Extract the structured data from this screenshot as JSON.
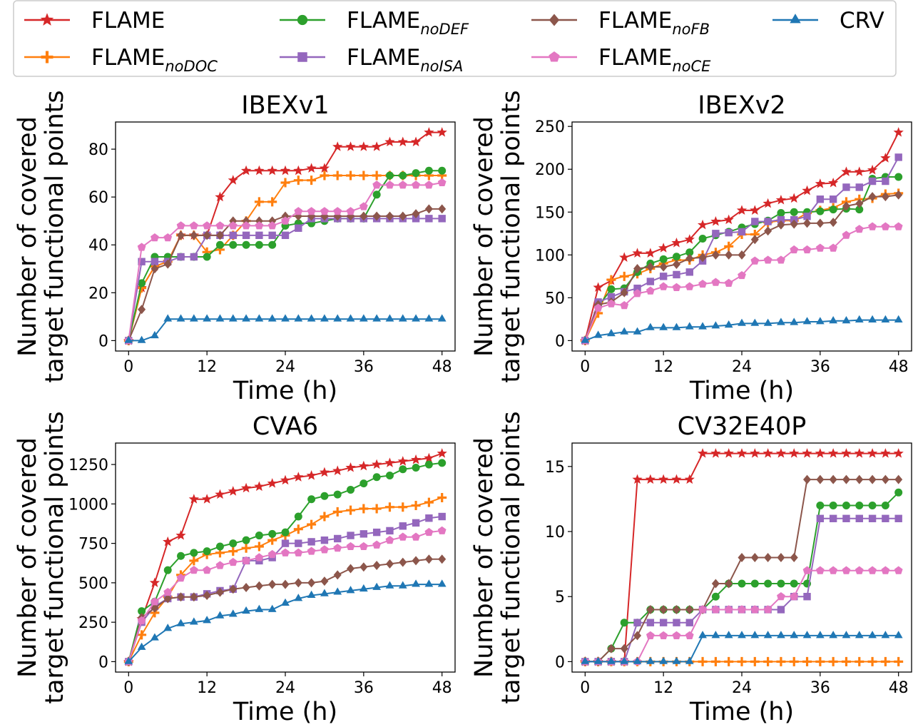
{
  "colors": {
    "FLAME": "#d62728",
    "FLAME_noDOC": "#ff7f0e",
    "FLAME_noDEF": "#2ca02c",
    "FLAME_noISA": "#9467bd",
    "FLAME_noFB": "#8c564b",
    "FLAME_noCE": "#e377c2",
    "CRV": "#1f77b4"
  },
  "legend": [
    {
      "key": "FLAME",
      "base": "FLAME",
      "sub": "",
      "marker": "star"
    },
    {
      "key": "FLAME_noDOC",
      "base": "FLAME",
      "sub": "noDOC",
      "marker": "plus"
    },
    {
      "key": "FLAME_noDEF",
      "base": "FLAME",
      "sub": "noDEF",
      "marker": "circle"
    },
    {
      "key": "FLAME_noISA",
      "base": "FLAME",
      "sub": "noISA",
      "marker": "square"
    },
    {
      "key": "FLAME_noFB",
      "base": "FLAME",
      "sub": "noFB",
      "marker": "diamond"
    },
    {
      "key": "FLAME_noCE",
      "base": "FLAME",
      "sub": "noCE",
      "marker": "pentagon"
    },
    {
      "key": "CRV",
      "base": "CRV",
      "sub": "",
      "marker": "triangle"
    }
  ],
  "chart_data": [
    {
      "type": "line",
      "title": "IBEXv1",
      "xlabel": "Time (h)",
      "ylabel": "Number of covered target functional points",
      "xlim": [
        -2,
        50
      ],
      "ylim": [
        -4.35,
        91.35
      ],
      "xticks": [
        0,
        12,
        24,
        36,
        48
      ],
      "yticks": [
        0,
        20,
        40,
        60,
        80
      ],
      "x": [
        0,
        2,
        4,
        6,
        8,
        10,
        12,
        14,
        16,
        18,
        20,
        22,
        24,
        26,
        28,
        30,
        32,
        34,
        36,
        38,
        40,
        42,
        44,
        46,
        48
      ],
      "series": [
        {
          "name": "FLAME",
          "values": [
            0,
            22,
            31,
            33,
            44,
            44,
            44,
            60,
            67,
            71,
            71,
            71,
            71,
            71,
            72,
            72,
            81,
            81,
            81,
            81,
            83,
            83,
            83,
            87,
            87
          ]
        },
        {
          "name": "FLAME_noDOC",
          "values": [
            0,
            22,
            31,
            33,
            44,
            44,
            37,
            38,
            44,
            50,
            58,
            58,
            66,
            67,
            67,
            69,
            69,
            69,
            69,
            69,
            69,
            69,
            69,
            69,
            69
          ]
        },
        {
          "name": "FLAME_noDEF",
          "values": [
            0,
            24,
            35,
            35,
            35,
            35,
            35,
            40,
            40,
            40,
            40,
            40,
            48,
            49,
            49,
            50,
            51,
            51,
            51,
            61,
            69,
            69,
            70,
            71,
            71
          ]
        },
        {
          "name": "FLAME_noISA",
          "values": [
            0,
            33,
            33,
            33,
            35,
            35,
            44,
            44,
            44,
            44,
            44,
            44,
            44,
            47,
            51,
            51,
            51,
            51,
            51,
            51,
            51,
            51,
            51,
            51,
            51
          ]
        },
        {
          "name": "FLAME_noFB",
          "values": [
            0,
            13,
            30,
            32,
            44,
            44,
            44,
            44,
            50,
            50,
            50,
            50,
            52,
            52,
            52,
            52,
            52,
            52,
            52,
            52,
            52,
            52,
            53,
            55,
            55
          ]
        },
        {
          "name": "FLAME_noCE",
          "values": [
            0,
            39,
            43,
            43,
            48,
            48,
            48,
            48,
            48,
            48,
            48,
            48,
            50,
            54,
            54,
            54,
            54,
            54,
            56,
            65,
            65,
            65,
            65,
            65,
            66
          ]
        },
        {
          "name": "CRV",
          "values": [
            0,
            0,
            2,
            9,
            9,
            9,
            9,
            9,
            9,
            9,
            9,
            9,
            9,
            9,
            9,
            9,
            9,
            9,
            9,
            9,
            9,
            9,
            9,
            9,
            9
          ]
        }
      ]
    },
    {
      "type": "line",
      "title": "IBEXv2",
      "xlabel": "Time (h)",
      "ylabel": "Number of covered target functional points",
      "xlim": [
        -2,
        50
      ],
      "ylim": [
        -12.15,
        255.15
      ],
      "xticks": [
        0,
        12,
        24,
        36,
        48
      ],
      "yticks": [
        0,
        50,
        100,
        150,
        200,
        250
      ],
      "x": [
        0,
        2,
        4,
        6,
        8,
        10,
        12,
        14,
        16,
        18,
        20,
        22,
        24,
        26,
        28,
        30,
        32,
        34,
        36,
        38,
        40,
        42,
        44,
        46,
        48
      ],
      "series": [
        {
          "name": "FLAME",
          "values": [
            0,
            62,
            70,
            97,
            102,
            102,
            108,
            114,
            118,
            135,
            139,
            141,
            152,
            152,
            160,
            164,
            166,
            175,
            183,
            184,
            197,
            197,
            199,
            213,
            243
          ]
        },
        {
          "name": "FLAME_noDOC",
          "values": [
            0,
            32,
            71,
            75,
            78,
            84,
            90,
            94,
            94,
            100,
            103,
            110,
            124,
            124,
            138,
            140,
            140,
            149,
            152,
            155,
            162,
            165,
            166,
            171,
            172
          ]
        },
        {
          "name": "FLAME_noDEF",
          "values": [
            0,
            40,
            60,
            61,
            80,
            90,
            95,
            98,
            103,
            119,
            123,
            127,
            132,
            136,
            140,
            149,
            150,
            150,
            151,
            153,
            154,
            153,
            189,
            191,
            191
          ]
        },
        {
          "name": "FLAME_noISA",
          "values": [
            0,
            45,
            51,
            57,
            61,
            69,
            75,
            77,
            80,
            93,
            125,
            126,
            127,
            139,
            139,
            141,
            141,
            145,
            165,
            165,
            179,
            179,
            186,
            186,
            214
          ]
        },
        {
          "name": "FLAME_noFB",
          "values": [
            0,
            42,
            45,
            56,
            84,
            86,
            86,
            89,
            96,
            97,
            100,
            100,
            100,
            118,
            128,
            135,
            136,
            137,
            137,
            138,
            157,
            160,
            168,
            168,
            170
          ]
        },
        {
          "name": "FLAME_noCE",
          "values": [
            0,
            38,
            43,
            41,
            55,
            58,
            63,
            62,
            63,
            66,
            68,
            67,
            76,
            93,
            94,
            94,
            106,
            106,
            108,
            108,
            123,
            130,
            133,
            133,
            133
          ]
        },
        {
          "name": "CRV",
          "values": [
            0,
            6,
            8,
            10,
            10,
            15,
            15,
            15,
            16,
            16,
            17,
            18,
            20,
            20,
            20,
            21,
            21,
            22,
            22,
            23,
            23,
            24,
            24,
            24,
            24
          ]
        }
      ]
    },
    {
      "type": "line",
      "title": "CVA6",
      "xlabel": "Time (h)",
      "ylabel": "Number of covered target functional points",
      "xlim": [
        -2,
        50
      ],
      "ylim": [
        -66,
        1386
      ],
      "xticks": [
        0,
        12,
        24,
        36,
        48
      ],
      "yticks": [
        0,
        250,
        500,
        750,
        1000,
        1250
      ],
      "x": [
        0,
        2,
        4,
        6,
        8,
        10,
        12,
        14,
        16,
        18,
        20,
        22,
        24,
        26,
        28,
        30,
        32,
        34,
        36,
        38,
        40,
        42,
        44,
        46,
        48
      ],
      "series": [
        {
          "name": "FLAME",
          "values": [
            0,
            270,
            500,
            760,
            800,
            1030,
            1030,
            1060,
            1080,
            1100,
            1110,
            1130,
            1150,
            1170,
            1180,
            1200,
            1210,
            1230,
            1240,
            1250,
            1260,
            1270,
            1280,
            1290,
            1320
          ]
        },
        {
          "name": "FLAME_noDOC",
          "values": [
            0,
            170,
            310,
            410,
            550,
            640,
            680,
            690,
            700,
            720,
            730,
            770,
            800,
            840,
            870,
            920,
            950,
            960,
            970,
            970,
            980,
            980,
            990,
            1010,
            1040
          ]
        },
        {
          "name": "FLAME_noDEF",
          "values": [
            0,
            320,
            380,
            580,
            670,
            690,
            700,
            730,
            750,
            770,
            800,
            810,
            820,
            920,
            1030,
            1050,
            1060,
            1090,
            1130,
            1170,
            1180,
            1220,
            1230,
            1250,
            1260
          ]
        },
        {
          "name": "FLAME_noISA",
          "values": [
            0,
            250,
            350,
            400,
            410,
            410,
            430,
            450,
            460,
            640,
            640,
            660,
            750,
            750,
            760,
            770,
            780,
            800,
            810,
            820,
            830,
            860,
            880,
            910,
            920
          ]
        },
        {
          "name": "FLAME_noFB",
          "values": [
            0,
            280,
            340,
            400,
            410,
            410,
            420,
            440,
            460,
            470,
            480,
            490,
            490,
            500,
            500,
            510,
            550,
            590,
            600,
            610,
            620,
            630,
            640,
            650,
            650
          ]
        },
        {
          "name": "FLAME_noCE",
          "values": [
            0,
            260,
            380,
            440,
            530,
            580,
            580,
            610,
            630,
            640,
            660,
            680,
            690,
            690,
            700,
            710,
            720,
            730,
            730,
            740,
            770,
            790,
            790,
            820,
            830
          ]
        },
        {
          "name": "CRV",
          "values": [
            0,
            90,
            150,
            210,
            240,
            250,
            260,
            290,
            300,
            320,
            330,
            330,
            370,
            400,
            420,
            430,
            440,
            450,
            460,
            470,
            480,
            480,
            490,
            490,
            490
          ]
        }
      ]
    },
    {
      "type": "line",
      "title": "CV32E40P",
      "xlabel": "Time (h)",
      "ylabel": "Number of covered target functional points",
      "xlim": [
        -2,
        50
      ],
      "ylim": [
        -0.8,
        16.8
      ],
      "xticks": [
        0,
        12,
        24,
        36,
        48
      ],
      "yticks": [
        0,
        5,
        10,
        15
      ],
      "x": [
        0,
        2,
        4,
        6,
        8,
        10,
        12,
        14,
        16,
        18,
        20,
        22,
        24,
        26,
        28,
        30,
        32,
        34,
        36,
        38,
        40,
        42,
        44,
        46,
        48
      ],
      "series": [
        {
          "name": "FLAME",
          "values": [
            0,
            0,
            0,
            0,
            14,
            14,
            14,
            14,
            14,
            16,
            16,
            16,
            16,
            16,
            16,
            16,
            16,
            16,
            16,
            16,
            16,
            16,
            16,
            16,
            16
          ]
        },
        {
          "name": "FLAME_noDOC",
          "values": [
            0,
            0,
            0,
            0,
            0,
            0,
            0,
            0,
            0,
            0,
            0,
            0,
            0,
            0,
            0,
            0,
            0,
            0,
            0,
            0,
            0,
            0,
            0,
            0,
            0
          ]
        },
        {
          "name": "FLAME_noDEF",
          "values": [
            0,
            0,
            1,
            3,
            3,
            4,
            4,
            4,
            4,
            4,
            5,
            6,
            6,
            6,
            6,
            6,
            6,
            6,
            12,
            12,
            12,
            12,
            12,
            12,
            13
          ]
        },
        {
          "name": "FLAME_noISA",
          "values": [
            0,
            0,
            0,
            0,
            3,
            3,
            3,
            3,
            3,
            4,
            4,
            4,
            4,
            4,
            4,
            4,
            5,
            5,
            11,
            11,
            11,
            11,
            11,
            11,
            11
          ]
        },
        {
          "name": "FLAME_noFB",
          "values": [
            0,
            0,
            1,
            1,
            2,
            4,
            4,
            4,
            4,
            4,
            6,
            6,
            8,
            8,
            8,
            8,
            8,
            14,
            14,
            14,
            14,
            14,
            14,
            14,
            14
          ]
        },
        {
          "name": "FLAME_noCE",
          "values": [
            0,
            0,
            0,
            0,
            0,
            2,
            2,
            2,
            2,
            4,
            4,
            4,
            4,
            4,
            4,
            5,
            5,
            7,
            7,
            7,
            7,
            7,
            7,
            7,
            7
          ]
        },
        {
          "name": "CRV",
          "values": [
            0,
            0,
            0,
            0,
            0,
            0,
            0,
            0,
            0,
            2,
            2,
            2,
            2,
            2,
            2,
            2,
            2,
            2,
            2,
            2,
            2,
            2,
            2,
            2,
            2
          ]
        }
      ]
    }
  ]
}
